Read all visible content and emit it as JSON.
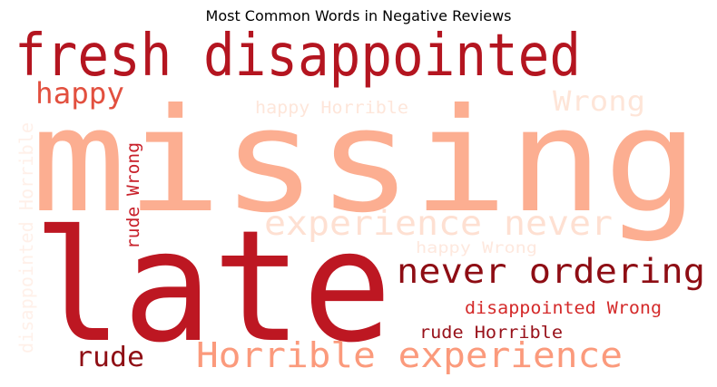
{
  "chart_data": {
    "type": "wordcloud",
    "title": "Most Common Words in Negative Reviews",
    "colormap": "Reds",
    "words": [
      {
        "text": "missing",
        "color": "#fcae91"
      },
      {
        "text": "late",
        "color": "#bd1722"
      },
      {
        "text": "fresh disappointed",
        "color": "#b41520"
      },
      {
        "text": "never ordering",
        "color": "#8e0d14"
      },
      {
        "text": "experience never",
        "color": "#fee0d2"
      },
      {
        "text": "Horrible experience",
        "color": "#fb9a7c"
      },
      {
        "text": "happy",
        "color": "#e2503f"
      },
      {
        "text": "Wrong",
        "color": "#fee5d8"
      },
      {
        "text": "rude",
        "color": "#8f0f15"
      },
      {
        "text": "happy Horrible",
        "color": "#fee6da"
      },
      {
        "text": "disappointed Wrong",
        "color": "#d42a2a"
      },
      {
        "text": "rude Horrible",
        "color": "#98111a"
      },
      {
        "text": "happy Wrong",
        "color": "#fee8de"
      },
      {
        "text": "rude Wrong",
        "color": "#c8202a"
      },
      {
        "text": "disappointed Horrible",
        "color": "#fff0e9"
      }
    ]
  }
}
